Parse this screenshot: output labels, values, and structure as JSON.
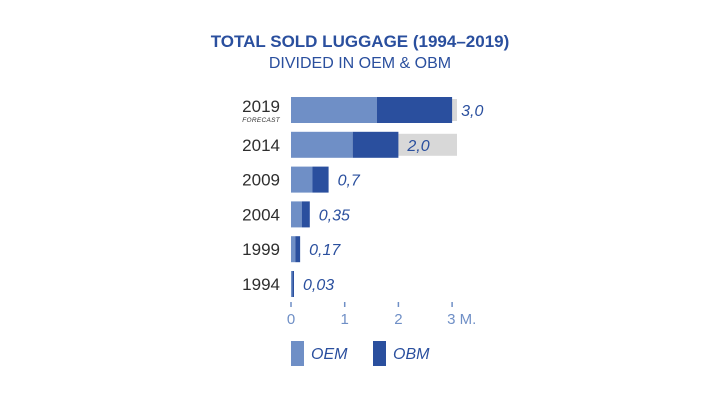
{
  "colors": {
    "oem": "#6f8fc6",
    "obm": "#2a4f9e",
    "text_blue": "#2a4f9e",
    "axis_blue": "#6f8fc6",
    "track": "#d8d8d8"
  },
  "chart_data": {
    "type": "bar",
    "orientation": "horizontal",
    "stacked": true,
    "title": "TOTAL SOLD LUGGAGE (1994–2019)",
    "subtitle": "DIVIDED IN OEM & OBM",
    "categories": [
      "2019",
      "2014",
      "2009",
      "2004",
      "1999",
      "1994"
    ],
    "category_notes": [
      "FORECAST",
      "",
      "",
      "",
      "",
      ""
    ],
    "totals": [
      3.0,
      2.0,
      0.7,
      0.35,
      0.17,
      0.03
    ],
    "total_labels": [
      "3,0",
      "2,0",
      "0,7",
      "0,35",
      "0,17",
      "0,03"
    ],
    "series": [
      {
        "name": "OEM",
        "values": [
          1.6,
          1.15,
          0.4,
          0.2,
          0.08,
          0.01
        ]
      },
      {
        "name": "OBM",
        "values": [
          1.4,
          0.85,
          0.3,
          0.15,
          0.09,
          0.02
        ]
      }
    ],
    "xticks": [
      0,
      1,
      2,
      3
    ],
    "xtick_labels": [
      "0",
      "1",
      "2",
      "3 M."
    ],
    "xlim": [
      0,
      3
    ],
    "grid": false,
    "legend_position": "bottom"
  }
}
